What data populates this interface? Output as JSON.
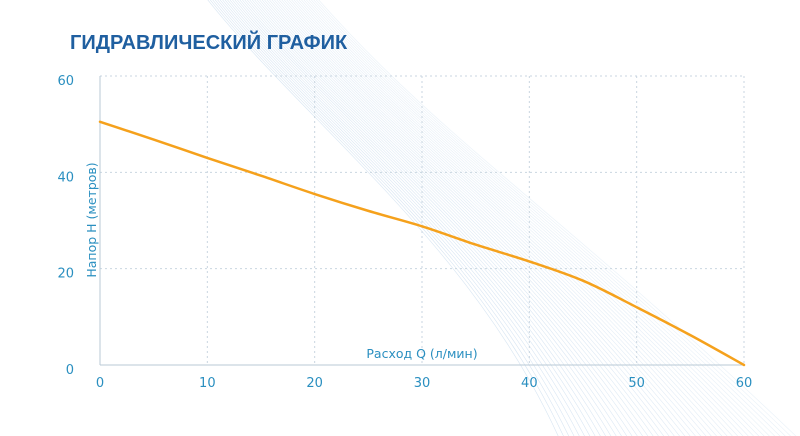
{
  "chart_data": {
    "type": "line",
    "title": "ГИДРАВЛИЧЕСКИЙ ГРАФИК",
    "xlabel": "Расход Q (л/мин)",
    "ylabel": "Напор H (метров)",
    "xlim": [
      0,
      60
    ],
    "ylim": [
      0,
      60
    ],
    "xticks": [
      0,
      10,
      20,
      30,
      40,
      50,
      60
    ],
    "yticks": [
      0,
      20,
      40,
      60
    ],
    "grid": true,
    "series": [
      {
        "x": [
          0,
          5,
          10,
          15,
          20,
          25,
          30,
          35,
          40,
          45,
          50,
          55,
          60
        ],
        "y": [
          50.5,
          46.8,
          43.0,
          39.3,
          35.5,
          32.0,
          28.8,
          25.0,
          21.5,
          17.5,
          12.0,
          6.2,
          0
        ]
      }
    ],
    "colors": {
      "title": "#1f5fa0",
      "axis_text": "#2a8fc0",
      "line": "#f5a11c",
      "grid": "#c9d6e0",
      "wave": "#4a88c4"
    }
  }
}
